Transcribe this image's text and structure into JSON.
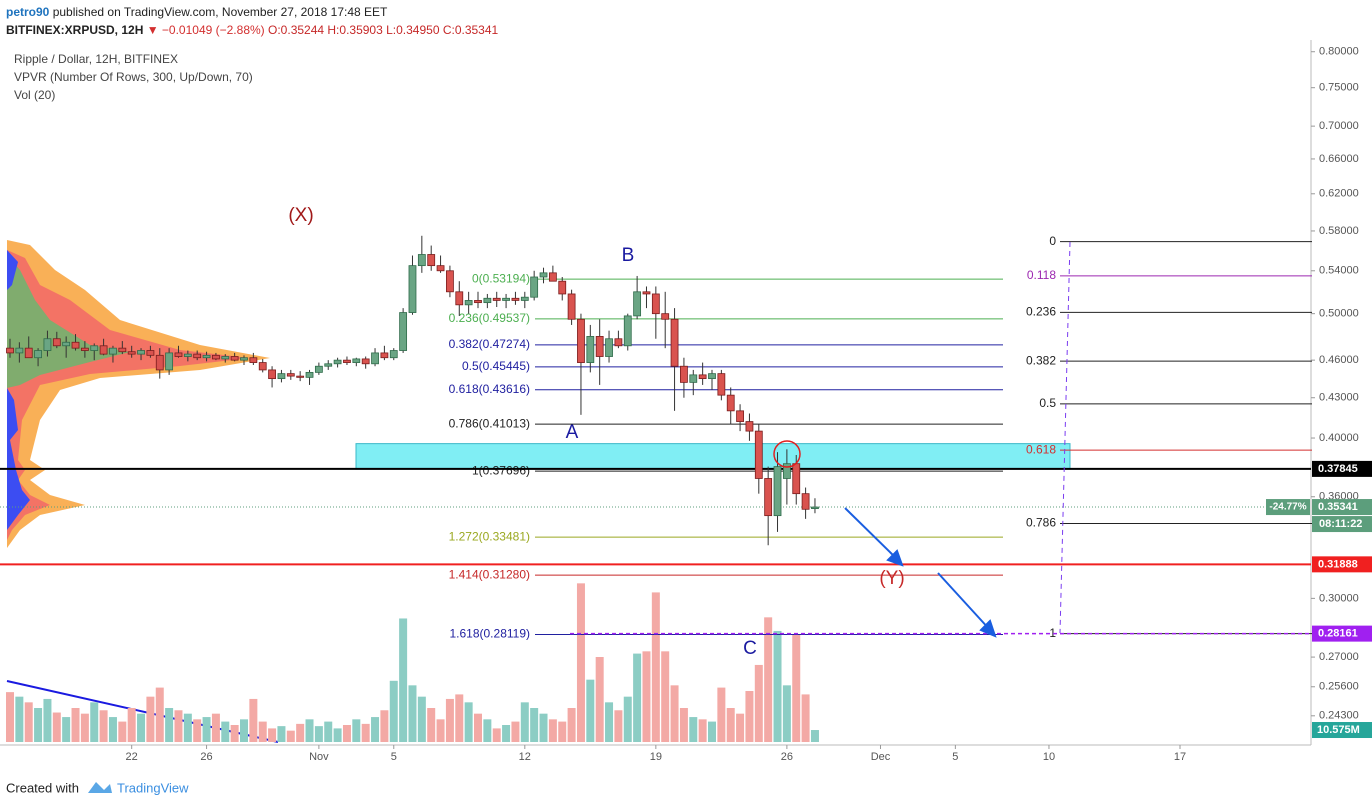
{
  "header": {
    "user": "petro90",
    "published": " published on TradingView.com, November 27, 2018 17:48 EET",
    "symbol": "BITFINEX:XRPUSD, 12H",
    "change": "▼ −0.01049 (−2.88%)",
    "ohlc": "O:0.35244 H:0.35903 L:0.34950 C:0.35341"
  },
  "footer": {
    "created": "Created with",
    "brand": "TradingView"
  },
  "chart_data": {
    "type": "candlestick",
    "log_scale": true,
    "grid": false,
    "legend": [
      "Ripple / Dollar, 12H, BITFINEX",
      "VPVR (Number Of Rows, 300, Up/Down, 70)",
      "Vol (20)"
    ],
    "categories": [
      null,
      null,
      null,
      null,
      null,
      null,
      null,
      null,
      null,
      null,
      null,
      null,
      null,
      "22",
      null,
      null,
      null,
      null,
      null,
      null,
      null,
      "26",
      null,
      null,
      null,
      null,
      null,
      null,
      null,
      null,
      null,
      null,
      null,
      "Nov",
      null,
      null,
      null,
      null,
      null,
      null,
      null,
      "5",
      null,
      null,
      null,
      null,
      null,
      null,
      null,
      null,
      null,
      null,
      null,
      null,
      null,
      "12",
      null,
      null,
      null,
      null,
      null,
      null,
      null,
      null,
      null,
      null,
      null,
      null,
      null,
      "19",
      null,
      null,
      null,
      null,
      null,
      null,
      null,
      null,
      null,
      null,
      null,
      null,
      null,
      "26",
      null,
      null,
      null,
      null,
      null,
      null,
      null,
      null,
      null,
      "Dec",
      null,
      null,
      null,
      null,
      null,
      null,
      null,
      "5",
      null,
      null,
      null,
      null,
      null,
      null,
      null,
      null,
      null,
      "10",
      null,
      null,
      null,
      null,
      null,
      null,
      null,
      null,
      null,
      null,
      null,
      null,
      null,
      "17",
      null,
      null,
      null,
      null,
      null,
      null,
      null,
      null,
      null,
      null,
      null,
      null,
      null
    ],
    "open": [
      0.47,
      0.466,
      0.47,
      0.462,
      0.468,
      0.478,
      0.472,
      0.475,
      0.47,
      0.468,
      0.472,
      0.465,
      0.47,
      0.467,
      0.465,
      0.468,
      0.464,
      0.452,
      0.466,
      0.463,
      0.465,
      0.462,
      0.464,
      0.461,
      0.463,
      0.46,
      0.462,
      0.458,
      0.452,
      0.445,
      0.449,
      0.447,
      0.446,
      0.45,
      0.455,
      0.457,
      0.46,
      0.458,
      0.461,
      0.457,
      0.466,
      0.462,
      0.468,
      0.501,
      0.545,
      0.556,
      0.545,
      0.54,
      0.52,
      0.508,
      0.512,
      0.51,
      0.514,
      0.512,
      0.514,
      0.512,
      0.515,
      0.534,
      0.538,
      0.53,
      0.518,
      0.495,
      0.458,
      0.48,
      0.463,
      0.478,
      0.472,
      0.498,
      0.52,
      0.518,
      0.5,
      0.495,
      0.455,
      0.442,
      0.448,
      0.445,
      0.449,
      0.432,
      0.42,
      0.412,
      0.405,
      0.372,
      0.348,
      0.372,
      0.382,
      0.362,
      0.35244,
      null,
      null,
      null,
      null,
      null,
      null,
      null,
      null,
      null,
      null,
      null,
      null,
      null,
      null,
      null,
      null,
      null,
      null,
      null,
      null,
      null,
      null,
      null,
      null,
      null,
      null,
      null,
      null,
      null,
      null,
      null,
      null,
      null,
      null,
      null,
      null,
      null,
      null,
      null,
      null,
      null,
      null,
      null,
      null,
      null,
      null,
      null,
      null,
      null,
      null,
      null,
      null
    ],
    "high": [
      0.478,
      0.475,
      0.48,
      0.47,
      0.485,
      0.484,
      0.48,
      0.482,
      0.476,
      0.474,
      0.478,
      0.472,
      0.476,
      0.472,
      0.47,
      0.472,
      0.47,
      0.47,
      0.472,
      0.468,
      0.468,
      0.467,
      0.466,
      0.465,
      0.466,
      0.464,
      0.466,
      0.461,
      0.455,
      0.452,
      0.452,
      0.451,
      0.452,
      0.458,
      0.46,
      0.462,
      0.463,
      0.462,
      0.463,
      0.47,
      0.472,
      0.47,
      0.505,
      0.555,
      0.575,
      0.565,
      0.555,
      0.545,
      0.53,
      0.52,
      0.52,
      0.518,
      0.52,
      0.518,
      0.52,
      0.52,
      0.54,
      0.543,
      0.545,
      0.534,
      0.522,
      0.5,
      0.49,
      0.495,
      0.485,
      0.485,
      0.5,
      0.535,
      0.525,
      0.525,
      0.52,
      0.505,
      0.462,
      0.452,
      0.458,
      0.452,
      0.452,
      0.438,
      0.425,
      0.418,
      0.41,
      0.38,
      0.39,
      0.392,
      0.388,
      0.366,
      0.35903,
      null,
      null,
      null,
      null,
      null,
      null,
      null,
      null,
      null,
      null,
      null,
      null,
      null,
      null,
      null,
      null,
      null,
      null,
      null,
      null,
      null,
      null,
      null,
      null,
      null,
      null,
      null,
      null,
      null,
      null,
      null,
      null,
      null,
      null,
      null,
      null,
      null,
      null,
      null,
      null,
      null,
      null,
      null,
      null,
      null,
      null,
      null,
      null,
      null,
      null,
      null,
      null
    ],
    "low": [
      0.462,
      0.458,
      0.465,
      0.455,
      0.463,
      0.47,
      0.462,
      0.468,
      0.462,
      0.46,
      0.464,
      0.458,
      0.465,
      0.462,
      0.46,
      0.462,
      0.445,
      0.448,
      0.462,
      0.459,
      0.46,
      0.459,
      0.46,
      0.458,
      0.459,
      0.456,
      0.456,
      0.45,
      0.438,
      0.442,
      0.444,
      0.443,
      0.44,
      0.448,
      0.452,
      0.454,
      0.456,
      0.455,
      0.453,
      0.455,
      0.46,
      0.46,
      0.466,
      0.499,
      0.538,
      0.54,
      0.538,
      0.515,
      0.498,
      0.5,
      0.505,
      0.505,
      0.506,
      0.505,
      0.508,
      0.505,
      0.512,
      0.528,
      0.53,
      0.512,
      0.49,
      0.417,
      0.45,
      0.44,
      0.458,
      0.47,
      0.468,
      0.495,
      0.505,
      0.478,
      0.47,
      0.42,
      0.43,
      0.432,
      0.44,
      0.436,
      0.428,
      0.41,
      0.405,
      0.398,
      0.362,
      0.33,
      0.338,
      0.355,
      0.355,
      0.346,
      0.3495,
      null,
      null,
      null,
      null,
      null,
      null,
      null,
      null,
      null,
      null,
      null,
      null,
      null,
      null,
      null,
      null,
      null,
      null,
      null,
      null,
      null,
      null,
      null,
      null,
      null,
      null,
      null,
      null,
      null,
      null,
      null,
      null,
      null,
      null,
      null,
      null,
      null,
      null,
      null,
      null,
      null,
      null,
      null,
      null,
      null,
      null,
      null,
      null,
      null,
      null,
      null,
      null
    ],
    "close": [
      0.466,
      0.47,
      0.462,
      0.468,
      0.478,
      0.472,
      0.475,
      0.47,
      0.468,
      0.472,
      0.465,
      0.47,
      0.467,
      0.465,
      0.468,
      0.464,
      0.452,
      0.466,
      0.463,
      0.465,
      0.462,
      0.464,
      0.461,
      0.463,
      0.46,
      0.462,
      0.458,
      0.452,
      0.445,
      0.449,
      0.447,
      0.446,
      0.45,
      0.455,
      0.457,
      0.46,
      0.458,
      0.461,
      0.457,
      0.466,
      0.462,
      0.468,
      0.501,
      0.545,
      0.556,
      0.545,
      0.54,
      0.52,
      0.508,
      0.512,
      0.51,
      0.514,
      0.512,
      0.514,
      0.512,
      0.515,
      0.534,
      0.538,
      0.53,
      0.518,
      0.495,
      0.458,
      0.48,
      0.463,
      0.478,
      0.472,
      0.498,
      0.52,
      0.518,
      0.5,
      0.495,
      0.455,
      0.442,
      0.448,
      0.445,
      0.449,
      0.432,
      0.42,
      0.412,
      0.405,
      0.372,
      0.348,
      0.38,
      0.382,
      0.362,
      0.352,
      0.35341,
      null,
      null,
      null,
      null,
      null,
      null,
      null,
      null,
      null,
      null,
      null,
      null,
      null,
      null,
      null,
      null,
      null,
      null,
      null,
      null,
      null,
      null,
      null,
      null,
      null,
      null,
      null,
      null,
      null,
      null,
      null,
      null,
      null,
      null,
      null,
      null,
      null,
      null,
      null,
      null,
      null,
      null,
      null,
      null,
      null,
      null,
      null,
      null,
      null,
      null,
      null,
      null
    ],
    "volume": [
      44,
      40,
      35,
      30,
      38,
      26,
      22,
      30,
      25,
      35,
      28,
      22,
      18,
      30,
      25,
      40,
      48,
      30,
      28,
      25,
      20,
      22,
      25,
      18,
      15,
      20,
      38,
      18,
      12,
      14,
      10,
      16,
      20,
      14,
      18,
      12,
      15,
      20,
      16,
      22,
      28,
      54,
      109,
      50,
      40,
      30,
      20,
      38,
      42,
      35,
      25,
      20,
      12,
      15,
      18,
      35,
      30,
      25,
      20,
      18,
      30,
      140,
      55,
      75,
      35,
      28,
      40,
      78,
      80,
      132,
      80,
      50,
      30,
      22,
      20,
      18,
      48,
      30,
      25,
      45,
      68,
      110,
      98,
      50,
      95,
      42,
      10.575,
      null,
      null,
      null,
      null,
      null,
      null,
      null,
      null,
      null,
      null,
      null,
      null,
      null,
      null,
      null,
      null,
      null,
      null,
      null,
      null,
      null,
      null,
      null,
      null,
      null,
      null,
      null,
      null,
      null,
      null,
      null,
      null,
      null,
      null,
      null,
      null,
      null,
      null,
      null,
      null,
      null,
      null,
      null,
      null,
      null,
      null,
      null,
      null,
      null,
      null,
      null,
      null
    ],
    "volume_label": "10.575M",
    "vlim": [
      0,
      150
    ],
    "up_color": "#6aa584",
    "down_color": "#d9534f",
    "ylim": [
      0.2306,
      0.817
    ],
    "yticks": [
      {
        "value": 0.8,
        "label": "0.80000"
      },
      {
        "value": 0.75,
        "label": "0.75000"
      },
      {
        "value": 0.7,
        "label": "0.70000"
      },
      {
        "value": 0.66,
        "label": "0.66000"
      },
      {
        "value": 0.62,
        "label": "0.62000"
      },
      {
        "value": 0.58,
        "label": "0.58000"
      },
      {
        "value": 0.54,
        "label": "0.54000"
      },
      {
        "value": 0.5,
        "label": "0.50000"
      },
      {
        "value": 0.46,
        "label": "0.46000"
      },
      {
        "value": 0.43,
        "label": "0.43000"
      },
      {
        "value": 0.4,
        "label": "0.40000"
      },
      {
        "value": 0.36,
        "label": "0.36000"
      },
      {
        "value": 0.3,
        "label": "0.30000"
      },
      {
        "value": 0.27,
        "label": "0.27000"
      },
      {
        "value": 0.256,
        "label": "0.25600"
      },
      {
        "value": 0.243,
        "label": "0.24300"
      }
    ],
    "fib_left": [
      {
        "price": 0.53194,
        "label": "0(0.53194)",
        "color": "#4caf50"
      },
      {
        "price": 0.49537,
        "label": "0.236(0.49537)",
        "color": "#4caf50"
      },
      {
        "price": 0.47274,
        "label": "0.382(0.47274)",
        "color": "#2020a0"
      },
      {
        "price": 0.45445,
        "label": "0.5(0.45445)",
        "color": "#2020a0"
      },
      {
        "price": 0.43616,
        "label": "0.618(0.43616)",
        "color": "#2020a0"
      },
      {
        "price": 0.41013,
        "label": "0.786(0.41013)",
        "color": "#222222"
      },
      {
        "price": 0.37696,
        "label": "1(0.37696)",
        "color": "#222222"
      },
      {
        "price": 0.33481,
        "label": "1.272(0.33481)",
        "color": "#9aa820"
      },
      {
        "price": 0.3128,
        "label": "1.414(0.31280)",
        "color": "#c62828"
      },
      {
        "price": 0.28119,
        "label": "1.618(0.28119)",
        "color": "#2020a0"
      }
    ],
    "fib_right": {
      "high": 0.569,
      "low": 0.28161,
      "levels": [
        0,
        0.118,
        0.236,
        0.382,
        0.5,
        0.618,
        0.786,
        1
      ],
      "colors": [
        "#222222",
        "#9c27b0",
        "#222222",
        "#222222",
        "#222222",
        "#d32f2f",
        "#222222",
        "#222222"
      ]
    },
    "zone": {
      "from": 0.3783,
      "to": 0.396,
      "color": "#80eef4"
    },
    "price_lines": [
      {
        "price": 0.37845,
        "label": "0.37845",
        "color": "#000000"
      },
      {
        "price": 0.31888,
        "label": "0.31888",
        "color": "#f02020"
      },
      {
        "price": 0.28161,
        "label": "0.28161",
        "color": "#a020f0"
      }
    ],
    "last": {
      "price": 0.35341,
      "label": "0.35341",
      "change": "-24.77%",
      "countdown": "08:11:22",
      "color": "#5c9e7c"
    },
    "annotations": [
      {
        "text": "(X)",
        "color": "#a01818"
      },
      {
        "text": "B",
        "color": "#1a1aa0"
      },
      {
        "text": "A",
        "color": "#1a1aa0"
      },
      {
        "text": "C",
        "color": "#1a1aa0"
      },
      {
        "text": "(Y)",
        "color": "#c62828"
      }
    ]
  }
}
